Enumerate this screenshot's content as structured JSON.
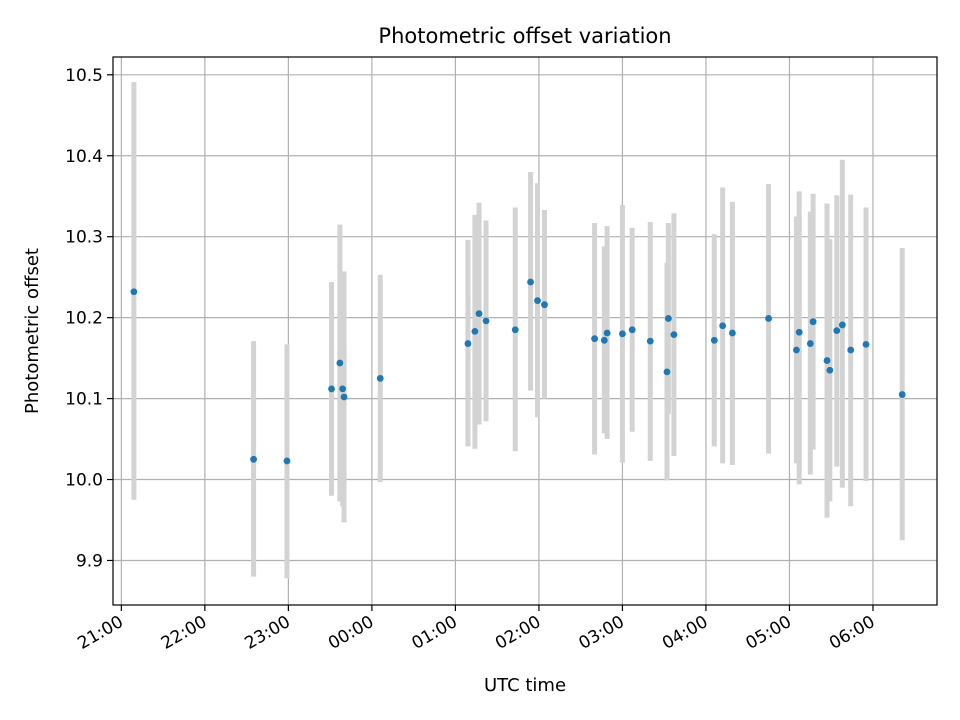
{
  "chart_data": {
    "type": "scatter",
    "title": "Photometric offset variation",
    "xlabel": "UTC time",
    "ylabel": "Photometric offset",
    "grid": true,
    "xlim": [
      "20:54",
      "06:46"
    ],
    "ylim": [
      9.845,
      10.522
    ],
    "x_ticks": [
      "21:00",
      "22:00",
      "23:00",
      "00:00",
      "01:00",
      "02:00",
      "03:00",
      "04:00",
      "05:00",
      "06:00"
    ],
    "y_ticks": [
      9.9,
      10.0,
      10.1,
      10.2,
      10.3,
      10.4,
      10.5
    ],
    "y_tick_labels": [
      "9.9",
      "10.0",
      "10.1",
      "10.2",
      "10.3",
      "10.4",
      "10.5"
    ],
    "colors": {
      "points": "#1f77b4",
      "error_bars": "#d3d3d3",
      "grid": "#b0b0b0"
    },
    "series": [
      {
        "points": [
          {
            "x": "21:09",
            "y": 10.232,
            "lo": 9.975,
            "hi": 10.491
          },
          {
            "x": "22:35",
            "y": 10.025,
            "lo": 9.88,
            "hi": 10.171
          },
          {
            "x": "22:59",
            "y": 10.023,
            "lo": 9.878,
            "hi": 10.167
          },
          {
            "x": "23:31",
            "y": 10.112,
            "lo": 9.98,
            "hi": 10.244
          },
          {
            "x": "23:37",
            "y": 10.144,
            "lo": 9.973,
            "hi": 10.315
          },
          {
            "x": "23:39",
            "y": 10.112,
            "lo": 9.967,
            "hi": 10.257
          },
          {
            "x": "23:40",
            "y": 10.102,
            "lo": 9.947,
            "hi": 10.257
          },
          {
            "x": "00:06",
            "y": 10.125,
            "lo": 9.997,
            "hi": 10.253
          },
          {
            "x": "01:09",
            "y": 10.168,
            "lo": 10.041,
            "hi": 10.296
          },
          {
            "x": "01:14",
            "y": 10.183,
            "lo": 10.038,
            "hi": 10.327
          },
          {
            "x": "01:17",
            "y": 10.205,
            "lo": 10.068,
            "hi": 10.342
          },
          {
            "x": "01:22",
            "y": 10.196,
            "lo": 10.072,
            "hi": 10.32
          },
          {
            "x": "01:43",
            "y": 10.185,
            "lo": 10.035,
            "hi": 10.336
          },
          {
            "x": "01:54",
            "y": 10.244,
            "lo": 10.11,
            "hi": 10.38
          },
          {
            "x": "01:59",
            "y": 10.221,
            "lo": 10.077,
            "hi": 10.366
          },
          {
            "x": "02:04",
            "y": 10.216,
            "lo": 10.1,
            "hi": 10.333
          },
          {
            "x": "02:40",
            "y": 10.174,
            "lo": 10.031,
            "hi": 10.317
          },
          {
            "x": "02:47",
            "y": 10.172,
            "lo": 10.057,
            "hi": 10.288
          },
          {
            "x": "02:49",
            "y": 10.181,
            "lo": 10.05,
            "hi": 10.313
          },
          {
            "x": "03:00",
            "y": 10.18,
            "lo": 10.021,
            "hi": 10.339
          },
          {
            "x": "03:07",
            "y": 10.185,
            "lo": 10.059,
            "hi": 10.311
          },
          {
            "x": "03:20",
            "y": 10.171,
            "lo": 10.023,
            "hi": 10.318
          },
          {
            "x": "03:32",
            "y": 10.133,
            "lo": 9.999,
            "hi": 10.268
          },
          {
            "x": "03:33",
            "y": 10.199,
            "lo": 10.081,
            "hi": 10.317
          },
          {
            "x": "03:37",
            "y": 10.179,
            "lo": 10.029,
            "hi": 10.329
          },
          {
            "x": "04:06",
            "y": 10.172,
            "lo": 10.041,
            "hi": 10.303
          },
          {
            "x": "04:12",
            "y": 10.19,
            "lo": 10.02,
            "hi": 10.361
          },
          {
            "x": "04:19",
            "y": 10.181,
            "lo": 10.018,
            "hi": 10.343
          },
          {
            "x": "04:45",
            "y": 10.199,
            "lo": 10.032,
            "hi": 10.365
          },
          {
            "x": "05:05",
            "y": 10.16,
            "lo": 10.02,
            "hi": 10.325
          },
          {
            "x": "05:07",
            "y": 10.182,
            "lo": 9.994,
            "hi": 10.356
          },
          {
            "x": "05:15",
            "y": 10.168,
            "lo": 10.006,
            "hi": 10.331
          },
          {
            "x": "05:17",
            "y": 10.195,
            "lo": 10.037,
            "hi": 10.353
          },
          {
            "x": "05:27",
            "y": 10.147,
            "lo": 9.953,
            "hi": 10.341
          },
          {
            "x": "05:29",
            "y": 10.135,
            "lo": 9.973,
            "hi": 10.297
          },
          {
            "x": "05:34",
            "y": 10.184,
            "lo": 10.016,
            "hi": 10.351
          },
          {
            "x": "05:38",
            "y": 10.191,
            "lo": 9.99,
            "hi": 10.395
          },
          {
            "x": "05:44",
            "y": 10.16,
            "lo": 9.967,
            "hi": 10.352
          },
          {
            "x": "05:55",
            "y": 10.167,
            "lo": 9.998,
            "hi": 10.336
          },
          {
            "x": "06:21",
            "y": 10.105,
            "lo": 9.925,
            "hi": 10.286
          }
        ]
      }
    ]
  }
}
